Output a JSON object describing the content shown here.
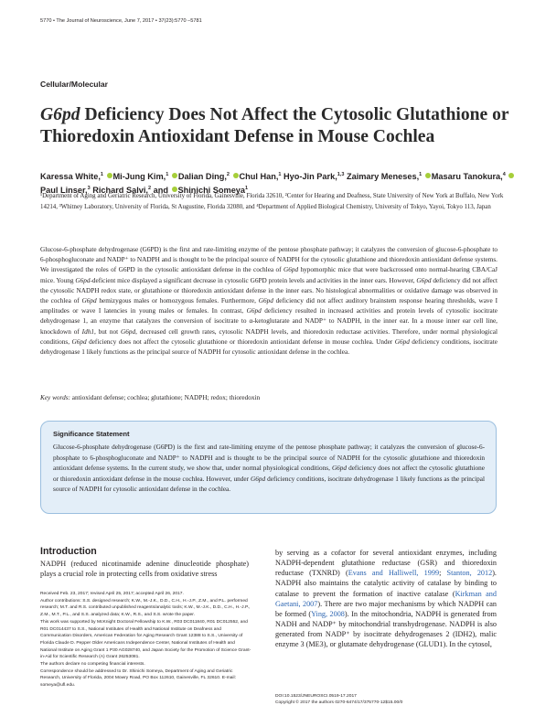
{
  "running_head": "5770 • The Journal of Neuroscience, June 7, 2017 • 37(23):5770 –5781",
  "section_label": "Cellular/Molecular",
  "title": {
    "gene": "G6pd",
    "rest": " Deficiency Does Not Affect the Cytosolic Glutathione or Thioredoxin Antioxidant Defense in Mouse Cochlea"
  },
  "authors": [
    {
      "name": "Karessa White,",
      "sup": "1",
      "orcid": false
    },
    {
      "name": "Mi-Jung Kim,",
      "sup": "1",
      "orcid": true
    },
    {
      "name": "Dalian Ding,",
      "sup": "2",
      "orcid": true
    },
    {
      "name": "Chul Han,",
      "sup": "1",
      "orcid": true
    },
    {
      "name": "Hyo-Jin Park,",
      "sup": "1,3",
      "orcid": false
    },
    {
      "name": "Zaimary Meneses,",
      "sup": "1",
      "orcid": false
    },
    {
      "name": "Masaru Tanokura,",
      "sup": "4",
      "orcid": true
    },
    {
      "name": "Paul Linser,",
      "sup": "3",
      "orcid": true
    },
    {
      "name": "Richard Salvi,",
      "sup": "2",
      "orcid": false
    },
    {
      "name": "and",
      "sup": "",
      "orcid": false
    },
    {
      "name": "Shinichi Someya",
      "sup": "1",
      "orcid": true
    }
  ],
  "affiliations": "¹Department of Aging and Geriatric Research, University of Florida, Gainesville, Florida 32610, ²Center for Hearing and Deafness, State University of New York at Buffalo, New York 14214, ³Whitney Laboratory, University of Florida, St Augustine, Florida 32080, and ⁴Department of Applied Biological Chemistry, University of Tokyo, Yayoi, Tokyo 113, Japan",
  "abstract": [
    {
      "t": "Glucose-6-phosphate dehydrogenase (G6PD) is the first and rate-limiting enzyme of the pentose phosphate pathway; it catalyzes the conversion of glucose-6-phosphate to 6-phosphogluconate and NADP",
      "i": false
    },
    {
      "t": "⁺",
      "i": false
    },
    {
      "t": " to NADPH and is thought to be the principal source of NADPH for the cytosolic glutathione and thioredoxin antioxidant defense systems. We investigated the roles of G6PD in the cytosolic antioxidant defense in the cochlea of ",
      "i": false
    },
    {
      "t": "G6pd",
      "i": true
    },
    {
      "t": " hypomorphic mice that were backcrossed onto normal-hearing CBA/CaJ mice. Young ",
      "i": false
    },
    {
      "t": "G6pd",
      "i": true
    },
    {
      "t": "-deficient mice displayed a significant decrease in cytosolic G6PD protein levels and activities in the inner ears. However, ",
      "i": false
    },
    {
      "t": "G6pd",
      "i": true
    },
    {
      "t": " deficiency did not affect the cytosolic NADPH redox state, or glutathione or thioredoxin antioxidant defense in the inner ears. No histological abnormalities or oxidative damage was observed in the cochlea of ",
      "i": false
    },
    {
      "t": "G6pd",
      "i": true
    },
    {
      "t": " hemizygous males or homozygous females. Furthermore, ",
      "i": false
    },
    {
      "t": "G6pd",
      "i": true
    },
    {
      "t": " deficiency did not affect auditory brainstem response hearing thresholds, wave I amplitudes or wave I latencies in young males or females. In contrast, ",
      "i": false
    },
    {
      "t": "G6pd",
      "i": true
    },
    {
      "t": " deficiency resulted in increased activities and protein levels of cytosolic isocitrate dehydrogenase 1, an enzyme that catalyzes the conversion of isocitrate to α-ketoglutarate and NADP",
      "i": false
    },
    {
      "t": "⁺",
      "i": false
    },
    {
      "t": " to NADPH, in the inner ear. In a mouse inner ear cell line, knockdown of ",
      "i": false
    },
    {
      "t": "Idh1",
      "i": true
    },
    {
      "t": ", but not ",
      "i": false
    },
    {
      "t": "G6pd",
      "i": true
    },
    {
      "t": ", decreased cell growth rates, cytosolic NADPH levels, and thioredoxin reductase activities. Therefore, under normal physiological conditions, ",
      "i": false
    },
    {
      "t": "G6pd",
      "i": true
    },
    {
      "t": " deficiency does not affect the cytosolic glutathione or thioredoxin antioxidant defense in mouse cochlea. Under ",
      "i": false
    },
    {
      "t": "G6pd",
      "i": true
    },
    {
      "t": " deficiency conditions, isocitrate dehydrogenase 1 likely functions as the principal source of NADPH for cytosolic antioxidant defense in the cochlea.",
      "i": false
    }
  ],
  "keywords": {
    "label": "Key words:",
    "text": " antioxidant defense; cochlea; glutathione; NADPH; redox; thioredoxin"
  },
  "significance": {
    "title": "Significance Statement",
    "segments": [
      {
        "t": "Glucose-6-phosphate dehydrogenase (G6PD) is the first and rate-limiting enzyme of the pentose phosphate pathway; it catalyzes the conversion of glucose-6-phosphate to 6-phosphogluconate and NADP",
        "i": false
      },
      {
        "t": "⁺",
        "i": false
      },
      {
        "t": " to NADPH and is thought to be the principal source of NADPH for the cytosolic glutathione and thioredoxin antioxidant defense systems. In the current study, we show that, under normal physiological conditions, ",
        "i": false
      },
      {
        "t": "G6pd",
        "i": true
      },
      {
        "t": " deficiency does not affect the cytosolic glutathione or thioredoxin antioxidant defense in the mouse cochlea. However, under ",
        "i": false
      },
      {
        "t": "G6pd",
        "i": true
      },
      {
        "t": " deficiency conditions, isocitrate dehydrogenase 1 likely functions as the principal source of NADPH for cytosolic antioxidant defense in the cochlea.",
        "i": false
      }
    ]
  },
  "intro": {
    "heading": "Introduction",
    "text": "NADPH (reduced nicotinamide adenine dinucleotide phosphate) plays a crucial role in protecting cells from oxidative stress"
  },
  "notes": [
    "Received Feb. 23, 2017; revised April 25, 2017; accepted April 26, 2017.",
    "Author contributions: S.S. designed research; K.W., M.-J.K., D.D., C.H., H.-J.P., Z.M., and P.L. performed research; M.T. and R.S. contributed unpublished reagents/analytic tools; K.W., M.-J.K., D.D., C.H., H.-J.P., Z.M., M.T., P.L., and S.S. analyzed data; K.W., R.S., and S.S. wrote the paper.",
    "This work was supported by McKnight Doctoral Fellowship to K.W., R03 DC011840, R01 DC012552, and R01 DC014437 to S.S., National Institutes of Health and National Institute on Deafness and Communication Disorders, American Federation for Aging Research Grant 12388 to S.S., University of Florida Claude D. Pepper Older Americans Independence Center, National Institutes of Health and National Institute on Aging Grant 1 P30 AG028740, and Japan Society for the Promotion of Science Grant-in-Aid for Scientific Research (A) Grant 26253081.",
    "The authors declare no competing financial interests.",
    "Correspondence should be addressed to Dr. Shinichi Someya, Department of Aging and Geriatric Research, University of Florida, 2004 Mowry Road, PO Box 112610, Gainesville, FL 32610. E-mail: someya@ufl.edu."
  ],
  "col2_segments": [
    {
      "t": "by serving as a cofactor for several antioxidant enzymes, including NADPH-dependent glutathione reductase (GSR) and thioredoxin reductase (TXNRD) (",
      "ref": false
    },
    {
      "t": "Evans and Halliwell, 1999",
      "ref": true
    },
    {
      "t": "; ",
      "ref": false
    },
    {
      "t": "Stanton, 2012",
      "ref": true
    },
    {
      "t": "). NADPH also maintains the catalytic activity of catalase by binding to catalase to prevent the formation of inactive catalase (",
      "ref": false
    },
    {
      "t": "Kirkman and Gaetani, 2007",
      "ref": true
    },
    {
      "t": "). There are two major mechanisms by which NADPH can be formed (",
      "ref": false
    },
    {
      "t": "Ying, 2008",
      "ref": true
    },
    {
      "t": "). In the mitochondria, NADPH is generated from NADH and NADP⁺ by mitochondrial transhydrogenase. NADPH is also generated from NADP⁺ by isocitrate dehydrogenases 2 (IDH2), malic enzyme 3 (ME3), or glutamate dehydrogenase (GLUD1). In the cytosol,",
      "ref": false
    }
  ],
  "doi": [
    "DOI:10.1523/JNEUROSCI.0519-17.2017",
    "Copyright © 2017 the authors   0270-6474/17/375770-12$15.00/0"
  ]
}
